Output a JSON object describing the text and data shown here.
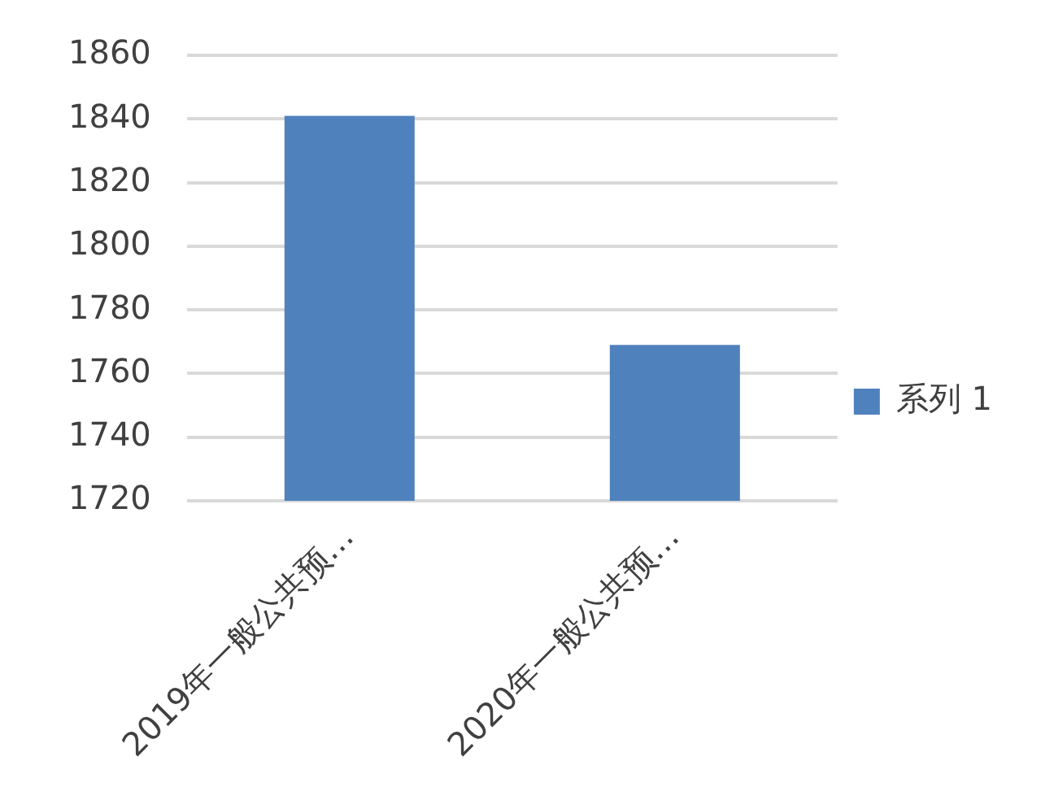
{
  "chart_data": {
    "type": "bar",
    "categories": [
      "2019年一般公共预…",
      "2020年一般公共预…"
    ],
    "series": [
      {
        "name": "系列 1",
        "color": "#4f81bd",
        "values": [
          1841,
          1769
        ]
      }
    ],
    "ylim": [
      1720,
      1860
    ],
    "yticks": [
      1720,
      1740,
      1760,
      1780,
      1800,
      1820,
      1840,
      1860
    ],
    "grid": "y",
    "legend": "right"
  }
}
